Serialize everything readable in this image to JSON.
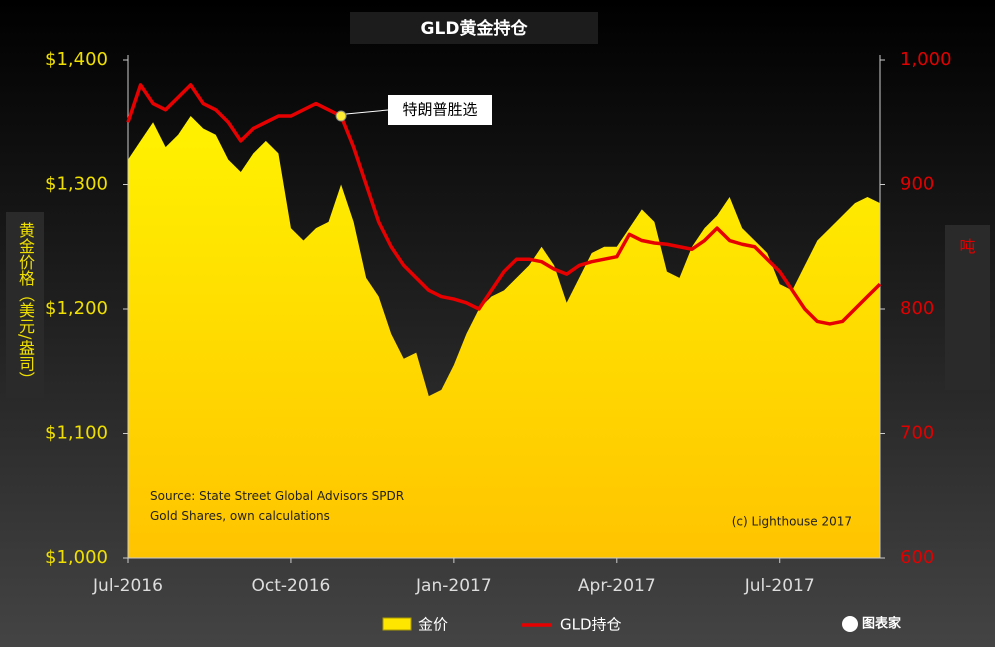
{
  "chart_data": {
    "type": "area-line",
    "title": "GLD黄金持仓",
    "y_label": "黄金价格（美元/盎司）",
    "y2_label": "吨",
    "source": "Source: State Street Global Advisors SPDR\nGold Shares, own calculations",
    "copyright": "(c) Lighthouse 2017",
    "annotation": "特朗普胜选",
    "logo": "图表家",
    "categories": [
      "Jul-2016",
      null,
      null,
      null,
      null,
      null,
      null,
      null,
      null,
      null,
      null,
      null,
      null,
      "Oct-2016",
      null,
      null,
      null,
      null,
      null,
      null,
      null,
      null,
      null,
      null,
      null,
      null,
      "Jan-2017",
      null,
      null,
      null,
      null,
      null,
      null,
      null,
      null,
      null,
      null,
      null,
      null,
      "Apr-2017",
      null,
      null,
      null,
      null,
      null,
      null,
      null,
      null,
      null,
      null,
      null,
      null,
      "Jul-2017",
      null,
      null,
      null,
      null,
      null,
      null,
      null,
      null
    ],
    "series": [
      {
        "name": "金价",
        "color": "#ffe600",
        "axis": "y",
        "values": [
          1320,
          1335,
          1350,
          1330,
          1340,
          1355,
          1345,
          1340,
          1320,
          1310,
          1325,
          1335,
          1325,
          1265,
          1255,
          1265,
          1270,
          1300,
          1270,
          1225,
          1210,
          1180,
          1160,
          1165,
          1130,
          1135,
          1155,
          1180,
          1200,
          1210,
          1215,
          1225,
          1235,
          1250,
          1235,
          1205,
          1225,
          1245,
          1250,
          1250,
          1265,
          1280,
          1270,
          1230,
          1225,
          1250,
          1265,
          1275,
          1290,
          1265,
          1255,
          1245,
          1220,
          1215,
          1235,
          1255,
          1265,
          1275,
          1285,
          1290,
          1285
        ]
      },
      {
        "name": "GLD持仓",
        "color": "#e60000",
        "axis": "y2",
        "values": [
          950,
          980,
          965,
          960,
          970,
          980,
          965,
          960,
          950,
          935,
          945,
          950,
          955,
          955,
          960,
          965,
          960,
          955,
          930,
          900,
          870,
          850,
          835,
          825,
          815,
          810,
          808,
          805,
          800,
          815,
          830,
          840,
          840,
          838,
          832,
          828,
          835,
          838,
          840,
          842,
          860,
          855,
          853,
          852,
          850,
          848,
          855,
          865,
          855,
          852,
          850,
          840,
          830,
          815,
          800,
          790,
          788,
          790,
          800,
          810,
          820
        ]
      }
    ],
    "ylim": [
      1000,
      1400
    ],
    "yticks": [
      {
        "value": 1000,
        "label": "$1,000"
      },
      {
        "value": 1100,
        "label": "$1,100"
      },
      {
        "value": 1200,
        "label": "$1,200"
      },
      {
        "value": 1300,
        "label": "$1,300"
      },
      {
        "value": 1400,
        "label": "$1,400"
      }
    ],
    "y2lim": [
      600,
      1000
    ],
    "y2ticks": [
      600,
      700,
      800,
      900,
      {
        "value": 1000,
        "label": "1,000"
      }
    ]
  }
}
